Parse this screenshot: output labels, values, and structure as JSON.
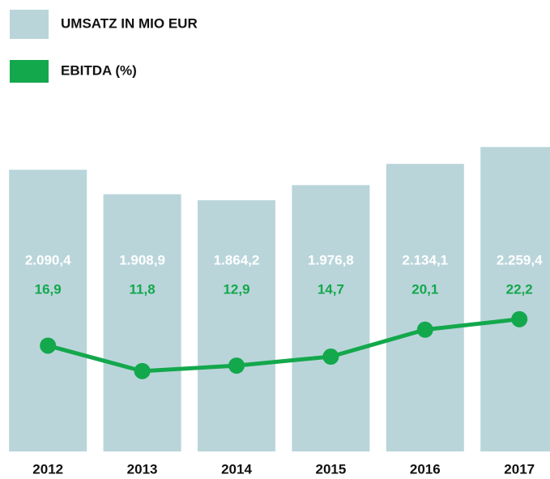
{
  "chart_data": {
    "type": "bar_line",
    "categories": [
      "2012",
      "2013",
      "2014",
      "2015",
      "2016",
      "2017"
    ],
    "series": [
      {
        "name": "UMSATZ IN MIO EUR",
        "type": "bar",
        "color": "#b9d5da",
        "values": [
          2090.4,
          1908.9,
          1864.2,
          1976.8,
          2134.1,
          2259.4
        ],
        "value_labels": [
          "2.090,4",
          "1.908,9",
          "1.864,2",
          "1.976,8",
          "2.134,1",
          "2.259,4"
        ]
      },
      {
        "name": "EBITDA (%)",
        "type": "line",
        "axis": "y2",
        "color": "#13a84c",
        "values": [
          16.9,
          11.8,
          12.9,
          14.7,
          20.1,
          22.2
        ],
        "value_labels": [
          "16,9",
          "11,8",
          "12,9",
          "14,7",
          "20,1",
          "22,2"
        ]
      }
    ],
    "ylim": [
      0,
      2400
    ],
    "y2lim": [
      -4.3,
      60.5
    ],
    "legend": "top-left"
  }
}
